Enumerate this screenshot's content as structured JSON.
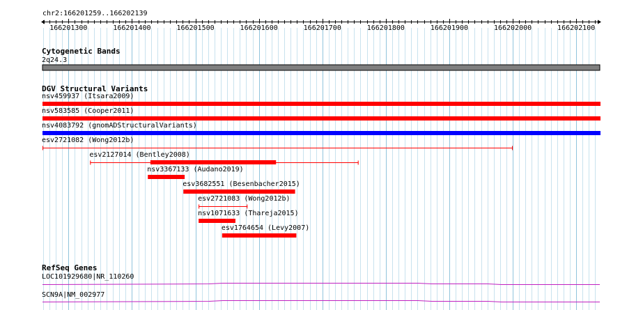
{
  "ruler": {
    "region": "chr2:166201259..166202139",
    "view_start": 166201259,
    "view_end": 166202139,
    "major_ticks": [
      166201300,
      166201400,
      166201500,
      166201600,
      166201700,
      166201800,
      166201900,
      166202000,
      166202100
    ],
    "tick_labels": [
      "166201300",
      "166201400",
      "166201500",
      "166201600",
      "166201700",
      "166201800",
      "166201900",
      "166202000",
      "166202100"
    ]
  },
  "tracks": {
    "cytoband": {
      "title": "Cytogenetic Bands",
      "band_label": "2q24.3",
      "band_color": "#7f7f7f"
    },
    "dgv": {
      "title": "DGV Structural Variants",
      "colors": {
        "loss": "#ff0000",
        "gain": "#0000ff"
      },
      "features": [
        {
          "label": "nsv459937 (Itsara2009)",
          "kind": "thick",
          "color": "loss",
          "start": 166201259,
          "end": 166202139
        },
        {
          "label": "nsv583585 (Cooper2011)",
          "kind": "thick",
          "color": "loss",
          "start": 166201259,
          "end": 166202139
        },
        {
          "label": "nsv4083792 (gnomADStructuralVariants)",
          "kind": "thick",
          "color": "gain",
          "start": 166201259,
          "end": 166202139
        },
        {
          "label": "esv2721082 (Wong2012b)",
          "kind": "thin",
          "color": "loss",
          "start": 166201259,
          "end": 166202000
        },
        {
          "label": "esv2127014 (Bentley2008)",
          "kind": "mixed",
          "color": "loss",
          "start": 166201334,
          "thick_end": 166201627,
          "end": 166201757
        },
        {
          "label": "nsv3367133 (Audano2019)",
          "kind": "thick",
          "color": "loss",
          "start": 166201425,
          "end": 166201483
        },
        {
          "label": "esv3682551 (Besenbacher2015)",
          "kind": "thick",
          "color": "loss",
          "start": 166201481,
          "end": 166201657
        },
        {
          "label": "esv2721083 (Wong2012b)",
          "kind": "thin",
          "color": "loss",
          "start": 166201505,
          "end": 166201582
        },
        {
          "label": "nsv1071633 (Thareja2015)",
          "kind": "thick",
          "color": "loss",
          "start": 166201505,
          "end": 166201563
        },
        {
          "label": "esv1764654 (Levy2007)",
          "kind": "thick",
          "color": "loss",
          "start": 166201542,
          "end": 166201659
        }
      ]
    },
    "refseq": {
      "title": "RefSeq Genes",
      "color": "#c020c0",
      "genes": [
        {
          "label": "LOC101929680|NR_110260"
        },
        {
          "label": "SCN9A|NM_002977"
        }
      ]
    }
  }
}
